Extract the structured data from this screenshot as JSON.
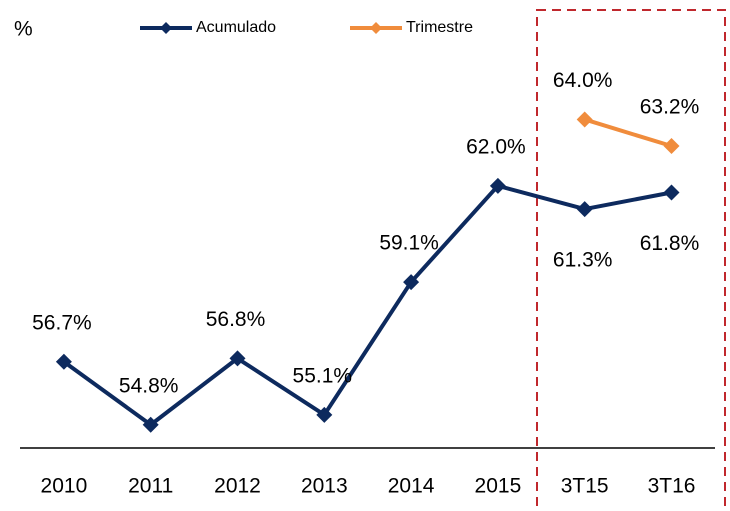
{
  "chart_data": {
    "type": "line",
    "y_label": "%",
    "categories": [
      "2010",
      "2011",
      "2012",
      "2013",
      "2014",
      "2015",
      "3T15",
      "3T16"
    ],
    "series": [
      {
        "name": "Acumulado",
        "color": "#0d2a5e",
        "values": [
          56.7,
          54.8,
          56.8,
          55.1,
          59.1,
          62.0,
          61.3,
          61.8
        ],
        "value_labels": [
          "56.7%",
          "54.8%",
          "56.8%",
          "55.1%",
          "59.1%",
          "62.0%",
          "61.3%",
          "61.8%"
        ]
      },
      {
        "name": "Trimestre",
        "color": "#f08c3c",
        "values": [
          null,
          null,
          null,
          null,
          null,
          null,
          64.0,
          63.2
        ],
        "value_labels": [
          null,
          null,
          null,
          null,
          null,
          null,
          "64.0%",
          "63.2%"
        ]
      }
    ],
    "ylim": [
      54.1,
      67.6
    ]
  }
}
